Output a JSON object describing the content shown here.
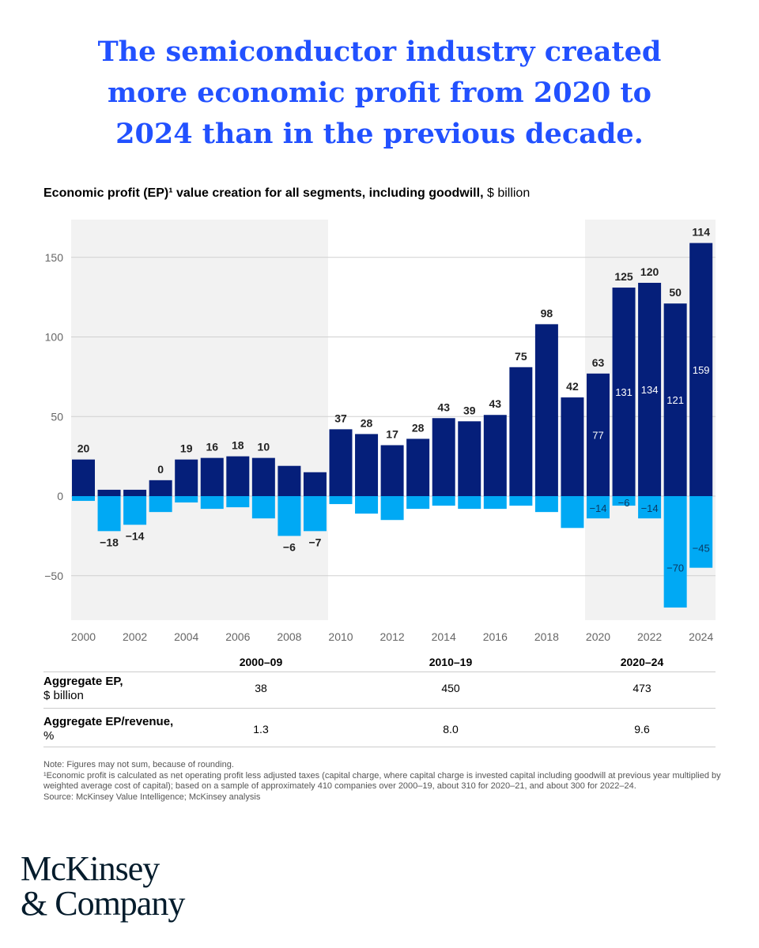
{
  "title_lines": [
    "The semiconductor industry created",
    "more economic profit from 2020 to",
    "2024 than in the previous decade."
  ],
  "chart_data": {
    "type": "bar",
    "stacked": true,
    "title": "Economic profit (EP)¹ value creation for all segments, including goodwill,",
    "unit": "$ billion",
    "categories": [
      "2000",
      "2001",
      "2002",
      "2003",
      "2004",
      "2005",
      "2006",
      "2007",
      "2008",
      "2009",
      "2010",
      "2011",
      "2012",
      "2013",
      "2014",
      "2015",
      "2016",
      "2017",
      "2018",
      "2019",
      "2020",
      "2021",
      "2022",
      "2023",
      "2024"
    ],
    "x_tick_labels": [
      "2000",
      "2002",
      "2004",
      "2006",
      "2008",
      "2010",
      "2012",
      "2014",
      "2016",
      "2018",
      "2020",
      "2022",
      "2024"
    ],
    "y_ticks": [
      150,
      100,
      50,
      0,
      -50
    ],
    "y_tick_labels": [
      "150",
      "100",
      "50",
      "0",
      "−50"
    ],
    "ylim": [
      -78,
      174
    ],
    "grid": true,
    "series": [
      {
        "color": "#051F7A",
        "values": [
          23,
          4,
          4,
          10,
          23,
          24,
          25,
          24,
          19,
          15,
          42,
          39,
          32,
          36,
          49,
          47,
          51,
          81,
          108,
          62,
          77,
          131,
          134,
          121,
          159
        ]
      },
      {
        "color": "#00A9F4",
        "values": [
          -3,
          -22,
          -18,
          -10,
          -4,
          -8,
          -7,
          -14,
          -25,
          -22,
          -5,
          -11,
          -15,
          -8,
          -6,
          -8,
          -8,
          -6,
          -10,
          -20,
          -14,
          -6,
          -14,
          -70,
          -45
        ]
      }
    ],
    "net_values": [
      20,
      -18,
      -14,
      0,
      19,
      16,
      18,
      10,
      -6,
      -7,
      37,
      28,
      17,
      28,
      43,
      39,
      43,
      75,
      98,
      42,
      63,
      125,
      120,
      50,
      114
    ],
    "net_labels": [
      "20",
      "−18",
      "−14",
      "0",
      "19",
      "16",
      "18",
      "10",
      "−6",
      "−7",
      "37",
      "28",
      "17",
      "28",
      "43",
      "39",
      "43",
      "75",
      "98",
      "42",
      "63",
      "125",
      "120",
      "50",
      "114"
    ],
    "inside_labels_from": "2020",
    "positive_labels": [
      "77",
      "131",
      "134",
      "121",
      "159"
    ],
    "negative_labels": [
      "−14",
      "−6",
      "−14",
      "−70",
      "−45"
    ],
    "shaded_periods": [
      [
        "2000",
        "2009"
      ],
      [
        "2020",
        "2024"
      ]
    ],
    "shade_color": "#F2F2F2"
  },
  "table": {
    "periods": [
      "2000–09",
      "2010–19",
      "2020–24"
    ],
    "rows": [
      {
        "label": "Aggregate EP,",
        "label_unit": "$ billion",
        "values": [
          "38",
          "450",
          "473"
        ]
      },
      {
        "label": "Aggregate EP/revenue,",
        "label_unit": "%",
        "values": [
          "1.3",
          "8.0",
          "9.6"
        ]
      }
    ]
  },
  "notes": [
    "Note: Figures may not sum, because of rounding.",
    "¹Economic profit is calculated as net operating profit less adjusted taxes (capital charge, where capital charge is invested capital including goodwill at previous year multiplied by weighted average cost of capital); based on a sample of approximately 410 companies over 2000–19, about 310 for 2020–21, and about 300 for 2022–24.",
    "Source: McKinsey Value Intelligence; McKinsey analysis"
  ],
  "logo": {
    "line1": "McKinsey",
    "line2": "& Company"
  }
}
